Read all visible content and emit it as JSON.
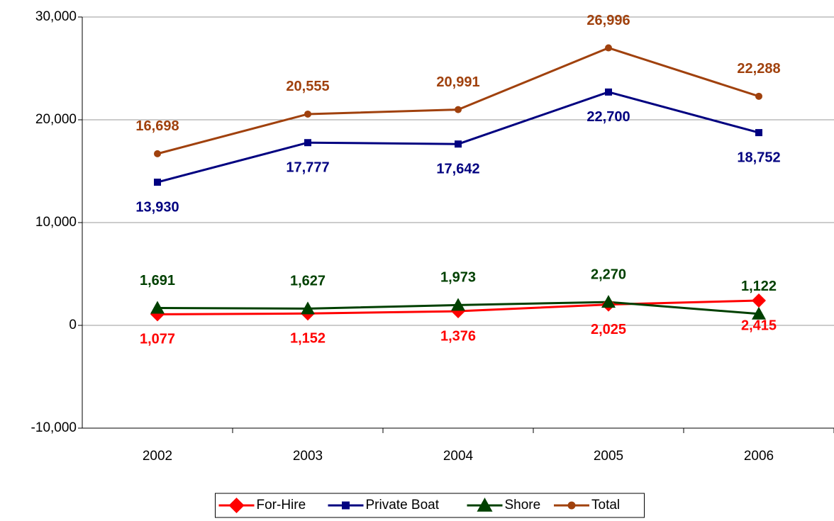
{
  "chart_data": {
    "type": "line",
    "categories": [
      "2002",
      "2003",
      "2004",
      "2005",
      "2006"
    ],
    "ylim": [
      -10000,
      30000
    ],
    "yticks": [
      {
        "value": -10000,
        "label": "-10,000"
      },
      0,
      {
        "value": 10000,
        "label": "10,000"
      },
      {
        "value": 20000,
        "label": "20,000"
      },
      {
        "value": 30000,
        "label": "30,000"
      }
    ],
    "grid": true,
    "legend": "bottom",
    "series": [
      {
        "name": "For-Hire",
        "color": "#ff0000",
        "marker": "diamond",
        "label_position": "below",
        "values": [
          1077,
          1152,
          1376,
          2025,
          2415
        ],
        "value_labels": [
          "1,077",
          "1,152",
          "1,376",
          "2,025",
          "2,415"
        ]
      },
      {
        "name": "Private Boat",
        "color": "#000080",
        "marker": "square",
        "label_position": "below",
        "values": [
          13930,
          17777,
          17642,
          22700,
          18752
        ],
        "value_labels": [
          "13,930",
          "17,777",
          "17,642",
          "22,700",
          "18,752"
        ]
      },
      {
        "name": "Shore",
        "color": "#004000",
        "marker": "triangle",
        "label_position": "above",
        "values": [
          1691,
          1627,
          1973,
          2270,
          1122
        ],
        "value_labels": [
          "1,691",
          "1,627",
          "1,973",
          "2,270",
          "1,122"
        ]
      },
      {
        "name": "Total",
        "color": "#a0410d",
        "marker": "circle",
        "label_position": "above",
        "values": [
          16698,
          20555,
          20991,
          26996,
          22288
        ],
        "value_labels": [
          "16,698",
          "20,555",
          "20,991",
          "26,996",
          "22,288"
        ]
      }
    ]
  }
}
